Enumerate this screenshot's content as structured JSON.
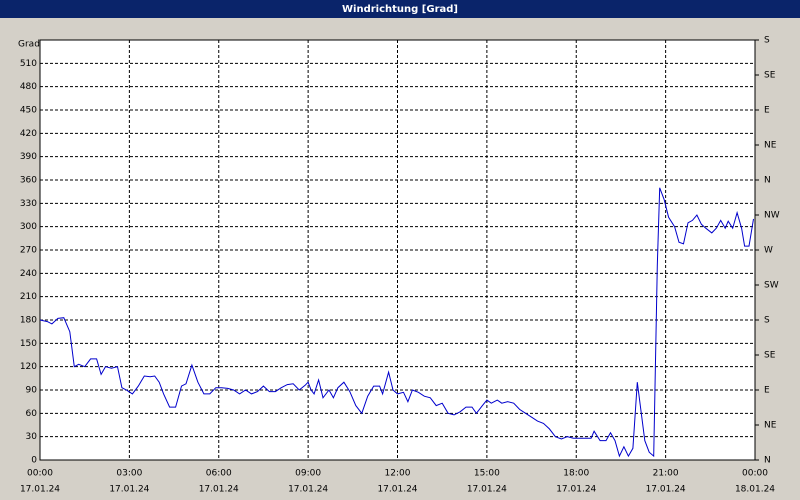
{
  "chart_data": {
    "type": "line",
    "title": "Windrichtung [Grad]",
    "y_label": "Grad",
    "xlim": [
      0,
      24
    ],
    "xticks": [
      {
        "value": 0,
        "label": "00:00"
      },
      {
        "value": 3,
        "label": "03:00"
      },
      {
        "value": 6,
        "label": "06:00"
      },
      {
        "value": 9,
        "label": "09:00"
      },
      {
        "value": 12,
        "label": "12:00"
      },
      {
        "value": 15,
        "label": "15:00"
      },
      {
        "value": 18,
        "label": "18:00"
      },
      {
        "value": 21,
        "label": "21:00"
      },
      {
        "value": 24,
        "label": "00:00"
      }
    ],
    "xtick_dates": [
      "17.01.24",
      "17.01.24",
      "17.01.24",
      "17.01.24",
      "17.01.24",
      "17.01.24",
      "17.01.24",
      "17.01.24",
      "18.01.24"
    ],
    "ylim": [
      0,
      540
    ],
    "yticks": [
      0,
      30,
      60,
      90,
      120,
      150,
      180,
      210,
      240,
      270,
      300,
      330,
      360,
      390,
      420,
      450,
      480,
      510
    ],
    "y2lim": [
      0,
      540
    ],
    "y2ticks": [
      {
        "value": 0,
        "label": "N"
      },
      {
        "value": 45,
        "label": "NE"
      },
      {
        "value": 90,
        "label": "E"
      },
      {
        "value": 135,
        "label": "SE"
      },
      {
        "value": 180,
        "label": "S"
      },
      {
        "value": 225,
        "label": "SW"
      },
      {
        "value": 270,
        "label": "W"
      },
      {
        "value": 315,
        "label": "NW"
      },
      {
        "value": 360,
        "label": "N"
      },
      {
        "value": 405,
        "label": "NE"
      },
      {
        "value": 450,
        "label": "E"
      },
      {
        "value": 495,
        "label": "SE"
      },
      {
        "value": 540,
        "label": "S"
      }
    ],
    "grid": true,
    "x": [
      0,
      0.25,
      0.4,
      0.6,
      0.8,
      1.0,
      1.15,
      1.3,
      1.5,
      1.7,
      1.9,
      2.05,
      2.2,
      2.4,
      2.6,
      2.75,
      2.9,
      3.1,
      3.3,
      3.5,
      3.7,
      3.85,
      4.0,
      4.15,
      4.35,
      4.55,
      4.75,
      4.9,
      5.1,
      5.3,
      5.5,
      5.7,
      5.9,
      6.1,
      6.3,
      6.5,
      6.7,
      6.9,
      7.1,
      7.3,
      7.5,
      7.7,
      7.9,
      8.1,
      8.3,
      8.5,
      8.7,
      8.9,
      9.0,
      9.1,
      9.2,
      9.35,
      9.5,
      9.7,
      9.85,
      10.0,
      10.2,
      10.4,
      10.6,
      10.8,
      11.0,
      11.2,
      11.4,
      11.5,
      11.7,
      11.85,
      12.0,
      12.2,
      12.35,
      12.5,
      12.7,
      12.9,
      13.1,
      13.3,
      13.5,
      13.7,
      13.9,
      14.1,
      14.3,
      14.5,
      14.65,
      14.85,
      15.0,
      15.15,
      15.35,
      15.5,
      15.7,
      15.9,
      16.1,
      16.3,
      16.5,
      16.7,
      16.9,
      17.1,
      17.3,
      17.5,
      17.7,
      17.9,
      18.1,
      18.3,
      18.5,
      18.6,
      18.8,
      19.0,
      19.15,
      19.3,
      19.45,
      19.6,
      19.75,
      19.9,
      20.05,
      20.15,
      20.3,
      20.45,
      20.6,
      20.72,
      20.8,
      20.95,
      21.1,
      21.3,
      21.45,
      21.6,
      21.75,
      21.9,
      22.05,
      22.2,
      22.35,
      22.55,
      22.7,
      22.85,
      23.0,
      23.1,
      23.25,
      23.4,
      23.55,
      23.65,
      23.8,
      23.95
    ],
    "series": [
      {
        "name": "Windrichtung",
        "color": "#0000cc",
        "values": [
          180,
          178,
          175,
          182,
          183,
          165,
          120,
          123,
          120,
          130,
          130,
          110,
          120,
          118,
          120,
          93,
          90,
          85,
          95,
          108,
          107,
          108,
          100,
          85,
          68,
          68,
          95,
          98,
          122,
          100,
          85,
          85,
          93,
          93,
          92,
          90,
          85,
          90,
          85,
          88,
          95,
          88,
          88,
          93,
          97,
          98,
          90,
          96,
          100,
          90,
          85,
          103,
          80,
          90,
          80,
          93,
          100,
          88,
          70,
          60,
          82,
          95,
          95,
          85,
          113,
          90,
          85,
          87,
          75,
          90,
          87,
          82,
          80,
          70,
          73,
          60,
          58,
          62,
          68,
          68,
          60,
          70,
          77,
          73,
          77,
          73,
          75,
          73,
          65,
          60,
          55,
          50,
          47,
          40,
          30,
          27,
          30,
          28,
          28,
          28,
          28,
          37,
          25,
          25,
          35,
          25,
          5,
          17,
          5,
          15,
          100,
          70,
          25,
          10,
          5,
          250,
          350,
          335,
          312,
          300,
          280,
          278,
          305,
          308,
          315,
          303,
          298,
          292,
          298,
          308,
          298,
          307,
          298,
          318,
          298,
          275,
          275,
          310
        ]
      }
    ]
  }
}
